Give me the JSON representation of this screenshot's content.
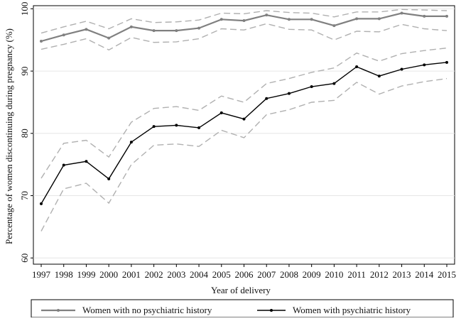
{
  "chart_data": {
    "type": "line",
    "title": "",
    "xlabel": "Year of delivery",
    "ylabel": "Percentage of women discontinuing during pregnancy (%)",
    "xlim": [
      1997,
      2015
    ],
    "ylim": [
      59,
      100.5
    ],
    "yticks": [
      60,
      70,
      80,
      90,
      100
    ],
    "grid": "horizontal",
    "legend_placement": "bottom",
    "categories": [
      "1997",
      "1998",
      "1999",
      "2000",
      "2001",
      "2002",
      "2003",
      "2004",
      "2005",
      "2006",
      "2007",
      "2008",
      "2009",
      "2010",
      "2011",
      "2012",
      "2013",
      "2014",
      "2015"
    ],
    "series": [
      {
        "name": "Women with no psychiatric history",
        "color": "#808080",
        "values": [
          94.8,
          95.8,
          96.7,
          95.3,
          97.1,
          96.5,
          96.5,
          96.9,
          98.3,
          98.1,
          99.0,
          98.3,
          98.3,
          97.3,
          98.4,
          98.4,
          99.3,
          98.8,
          98.8
        ],
        "ci_upper": [
          96.1,
          97.1,
          98.0,
          96.8,
          98.4,
          97.8,
          97.9,
          98.2,
          99.3,
          99.2,
          99.7,
          99.4,
          99.3,
          98.7,
          99.5,
          99.5,
          99.9,
          99.8,
          99.7
        ],
        "ci_lower": [
          93.5,
          94.3,
          95.2,
          93.4,
          95.4,
          94.6,
          94.7,
          95.2,
          96.8,
          96.6,
          97.6,
          96.7,
          96.6,
          95.0,
          96.4,
          96.3,
          97.5,
          96.8,
          96.5
        ]
      },
      {
        "name": "Women with psychiatric history",
        "color": "#000000",
        "values": [
          68.7,
          74.9,
          75.5,
          72.7,
          78.6,
          81.1,
          81.3,
          80.9,
          83.3,
          82.3,
          85.6,
          86.4,
          87.5,
          88.0,
          90.7,
          89.2,
          90.3,
          91.0,
          91.4
        ],
        "ci_upper": [
          72.8,
          78.4,
          78.9,
          76.2,
          81.8,
          84.0,
          84.3,
          83.7,
          86.0,
          85.0,
          88.0,
          88.8,
          89.8,
          90.5,
          92.9,
          91.6,
          92.8,
          93.3,
          93.7
        ],
        "ci_lower": [
          64.3,
          71.1,
          72.0,
          68.8,
          75.0,
          78.1,
          78.3,
          77.9,
          80.5,
          79.3,
          83.0,
          83.8,
          85.0,
          85.3,
          88.2,
          86.3,
          87.6,
          88.3,
          88.8
        ]
      }
    ]
  }
}
